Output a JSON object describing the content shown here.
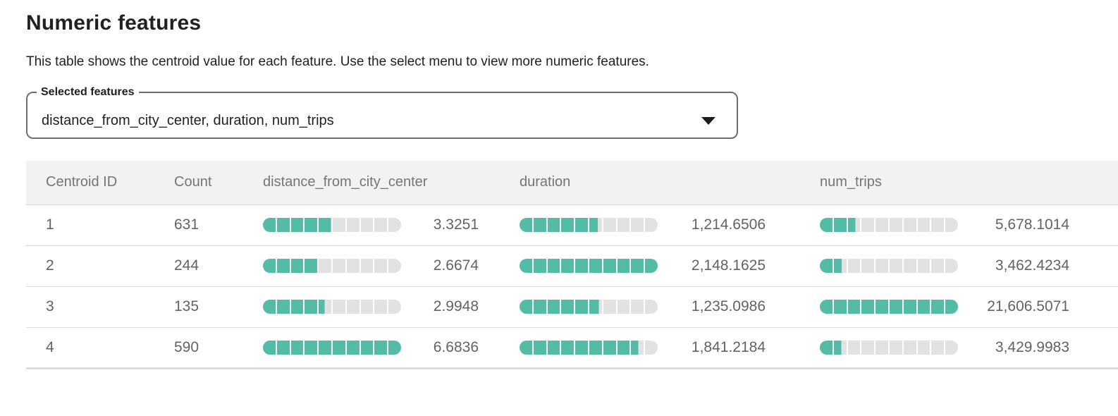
{
  "header": {
    "title": "Numeric features",
    "description": "This table shows the centroid value for each feature. Use the select menu to view more numeric features."
  },
  "select": {
    "label": "Selected features",
    "value": "distance_from_city_center, duration, num_trips",
    "icon": "dropdown-arrow"
  },
  "table": {
    "segments_per_bar": 10,
    "columns": [
      "Centroid ID",
      "Count",
      "distance_from_city_center",
      "duration",
      "num_trips"
    ],
    "rows": [
      {
        "centroid_id": "1",
        "count": "631",
        "features": [
          {
            "display": "3.3251",
            "value": 3.3251
          },
          {
            "display": "1,214.6506",
            "value": 1214.6506
          },
          {
            "display": "5,678.1014",
            "value": 5678.1014
          }
        ]
      },
      {
        "centroid_id": "2",
        "count": "244",
        "features": [
          {
            "display": "2.6674",
            "value": 2.6674
          },
          {
            "display": "2,148.1625",
            "value": 2148.1625
          },
          {
            "display": "3,462.4234",
            "value": 3462.4234
          }
        ]
      },
      {
        "centroid_id": "3",
        "count": "135",
        "features": [
          {
            "display": "2.9948",
            "value": 2.9948
          },
          {
            "display": "1,235.0986",
            "value": 1235.0986
          },
          {
            "display": "21,606.5071",
            "value": 21606.5071
          }
        ]
      },
      {
        "centroid_id": "4",
        "count": "590",
        "features": [
          {
            "display": "6.6836",
            "value": 6.6836
          },
          {
            "display": "1,841.2184",
            "value": 1841.2184
          },
          {
            "display": "3,429.9983",
            "value": 3429.9983
          }
        ]
      }
    ]
  },
  "colors": {
    "bar_fill": "#53bba6",
    "bar_empty": "#e2e2e2",
    "header_bg": "#f2f2f2",
    "header_text": "#757575",
    "cell_text": "#5f6368",
    "table_border": "#dcdcdc"
  }
}
